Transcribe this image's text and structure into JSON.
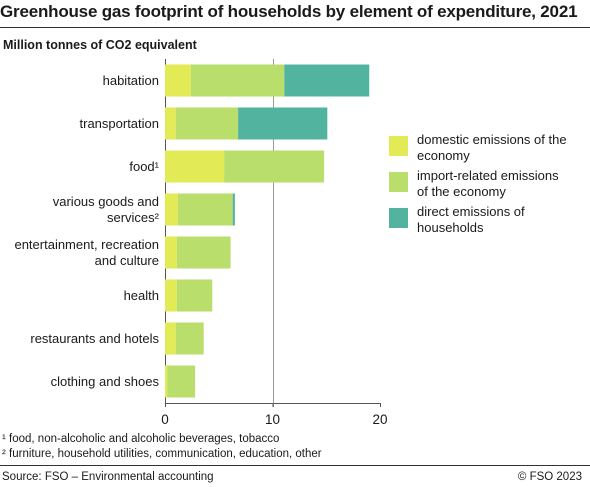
{
  "title": "Greenhouse gas footprint of households by element of expenditure, 2021",
  "subtitle": "Million tonnes of CO2 equivalent",
  "footnotes": [
    "¹ food, non-alcoholic and alcoholic beverages, tobacco",
    "² furniture, household utilities, communication, education, other"
  ],
  "source": "Source: FSO – Environmental accounting",
  "copyright": "© FSO 2023",
  "chart_data": {
    "type": "bar",
    "orientation": "horizontal",
    "stacked": true,
    "categories": [
      [
        "habitation"
      ],
      [
        "transportation"
      ],
      [
        "food¹"
      ],
      [
        "various goods and",
        "services²"
      ],
      [
        "entertainment, recreation",
        "and culture"
      ],
      [
        "health"
      ],
      [
        "restaurants and hotels"
      ],
      [
        "clothing and shoes"
      ]
    ],
    "series": [
      {
        "name": "domestic emissions of the economy",
        "legend_lines": [
          "domestic emissions of the",
          "economy"
        ],
        "color": "#e2ea56",
        "values": [
          2.4,
          1.0,
          5.5,
          1.2,
          1.1,
          1.1,
          1.0,
          0.2
        ]
      },
      {
        "name": "import-related emissions of the economy",
        "legend_lines": [
          "import-related emissions",
          "of the economy"
        ],
        "color": "#b9de6b",
        "values": [
          8.7,
          5.8,
          9.3,
          5.1,
          5.0,
          3.3,
          2.6,
          2.6
        ]
      },
      {
        "name": "direct emissions of households",
        "legend_lines": [
          "direct emissions of",
          "households"
        ],
        "color": "#52b49e",
        "values": [
          7.9,
          8.3,
          0.0,
          0.2,
          0.0,
          0.0,
          0.0,
          0.0
        ]
      }
    ],
    "xlim": [
      0,
      20
    ],
    "xticks": [
      0,
      10,
      20
    ],
    "reference_line": 10,
    "legend_position": "right"
  }
}
